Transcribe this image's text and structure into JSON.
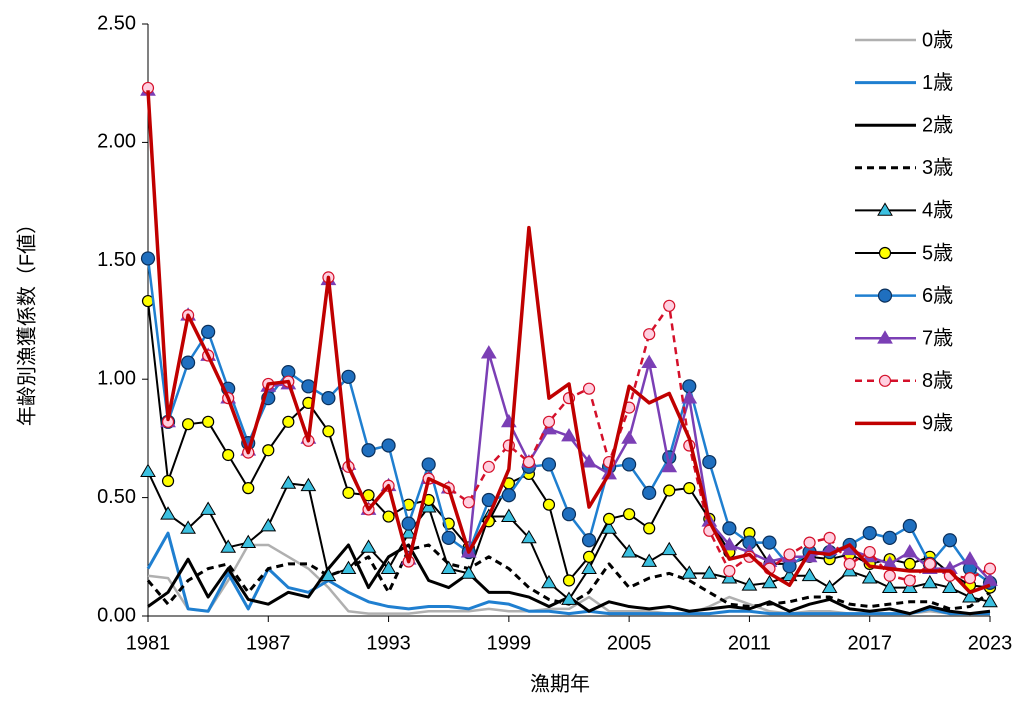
{
  "chart_data": {
    "type": "line",
    "xlabel": "漁期年",
    "ylabel": "年齢別漁獲係数（F値）",
    "x": [
      1981,
      1982,
      1983,
      1984,
      1985,
      1986,
      1987,
      1988,
      1989,
      1990,
      1991,
      1992,
      1993,
      1994,
      1995,
      1996,
      1997,
      1998,
      1999,
      2000,
      2001,
      2002,
      2003,
      2004,
      2005,
      2006,
      2007,
      2008,
      2009,
      2010,
      2011,
      2012,
      2013,
      2014,
      2015,
      2016,
      2017,
      2018,
      2019,
      2020,
      2021,
      2022,
      2023
    ],
    "xlim": [
      1981,
      2023
    ],
    "xticks": [
      1981,
      1987,
      1993,
      1999,
      2005,
      2011,
      2017,
      2023
    ],
    "ylim": [
      0,
      2.5
    ],
    "yticks": [
      {
        "value": 0,
        "label": "0.00"
      },
      {
        "value": 0.5,
        "label": "0.50"
      },
      {
        "value": 1,
        "label": "1.00"
      },
      {
        "value": 1.5,
        "label": "1.50"
      },
      {
        "value": 2,
        "label": "2.00"
      },
      {
        "value": 2.5,
        "label": "2.50"
      }
    ],
    "legend": "right",
    "series": [
      {
        "name": "0歳",
        "color": "#b0b0b0",
        "width": 2.5,
        "values": [
          0.17,
          0.16,
          0.03,
          0.02,
          0.15,
          0.3,
          0.3,
          0.25,
          0.2,
          0.12,
          0.02,
          0.01,
          0.01,
          0.01,
          0.02,
          0.02,
          0.02,
          0.03,
          0.02,
          0.02,
          0.03,
          0.03,
          0.08,
          0.02,
          0.02,
          0.02,
          0.01,
          0.01,
          0.04,
          0.08,
          0.05,
          0.02,
          0.01,
          0.02,
          0.02,
          0.01,
          0.01,
          0.01,
          0.01,
          0.02,
          0.01,
          0.01,
          0.01
        ]
      },
      {
        "name": "1歳",
        "color": "#1f7fd0",
        "width": 3,
        "values": [
          0.2,
          0.35,
          0.03,
          0.02,
          0.18,
          0.03,
          0.2,
          0.12,
          0.1,
          0.15,
          0.1,
          0.06,
          0.04,
          0.03,
          0.04,
          0.04,
          0.03,
          0.06,
          0.05,
          0.02,
          0.02,
          0.01,
          0.02,
          0.01,
          0.01,
          0.01,
          0.01,
          0.01,
          0.01,
          0.02,
          0.02,
          0.01,
          0.01,
          0.01,
          0.01,
          0.01,
          0.01,
          0.01,
          0.01,
          0.03,
          0.01,
          0.01,
          0.01
        ]
      },
      {
        "name": "2歳",
        "color": "#000000",
        "width": 3,
        "values": [
          0.04,
          0.1,
          0.24,
          0.08,
          0.2,
          0.07,
          0.05,
          0.1,
          0.08,
          0.2,
          0.3,
          0.12,
          0.25,
          0.3,
          0.15,
          0.12,
          0.18,
          0.1,
          0.1,
          0.08,
          0.04,
          0.08,
          0.02,
          0.06,
          0.04,
          0.03,
          0.04,
          0.02,
          0.03,
          0.04,
          0.03,
          0.06,
          0.02,
          0.05,
          0.07,
          0.03,
          0.02,
          0.03,
          0.01,
          0.04,
          0.02,
          0.01,
          0.02
        ]
      },
      {
        "name": "3歳",
        "color": "#000000",
        "width": 3,
        "dash": true,
        "values": [
          0.15,
          0.05,
          0.15,
          0.2,
          0.22,
          0.1,
          0.2,
          0.22,
          0.22,
          0.17,
          0.2,
          0.25,
          0.1,
          0.28,
          0.3,
          0.22,
          0.2,
          0.25,
          0.2,
          0.12,
          0.07,
          0.05,
          0.1,
          0.22,
          0.12,
          0.16,
          0.18,
          0.15,
          0.1,
          0.05,
          0.04,
          0.05,
          0.06,
          0.08,
          0.08,
          0.05,
          0.04,
          0.05,
          0.06,
          0.06,
          0.03,
          0.04,
          0.1
        ]
      },
      {
        "name": "4歳",
        "color": "#000000",
        "width": 2,
        "marker": "triangle",
        "marker_color": "#3cc0e0",
        "values": [
          0.61,
          0.43,
          0.37,
          0.45,
          0.29,
          0.31,
          0.38,
          0.56,
          0.55,
          0.17,
          0.2,
          0.29,
          0.2,
          0.35,
          0.46,
          0.2,
          0.18,
          0.42,
          0.42,
          0.33,
          0.14,
          0.07,
          0.2,
          0.37,
          0.27,
          0.23,
          0.28,
          0.18,
          0.18,
          0.16,
          0.13,
          0.14,
          0.17,
          0.17,
          0.12,
          0.19,
          0.16,
          0.12,
          0.12,
          0.14,
          0.12,
          0.08,
          0.06
        ]
      },
      {
        "name": "5歳",
        "color": "#000000",
        "width": 2,
        "marker": "circle",
        "marker_color": "#ffff00",
        "values": [
          1.33,
          0.57,
          0.81,
          0.82,
          0.68,
          0.54,
          0.7,
          0.82,
          0.9,
          0.78,
          0.52,
          0.51,
          0.42,
          0.47,
          0.49,
          0.39,
          0.29,
          0.4,
          0.56,
          0.6,
          0.47,
          0.15,
          0.25,
          0.41,
          0.43,
          0.37,
          0.53,
          0.54,
          0.41,
          0.27,
          0.35,
          0.22,
          0.22,
          0.25,
          0.24,
          0.26,
          0.22,
          0.24,
          0.22,
          0.25,
          0.18,
          0.13,
          0.12
        ]
      },
      {
        "name": "6歳",
        "color": "#1f7fd0",
        "width": 2.5,
        "marker": "circle",
        "marker_color": "#1f6fbf",
        "values": [
          1.51,
          0.82,
          1.07,
          1.2,
          0.96,
          0.73,
          0.92,
          1.03,
          0.97,
          0.92,
          1.01,
          0.7,
          0.72,
          0.39,
          0.64,
          0.33,
          0.27,
          0.49,
          0.51,
          0.63,
          0.64,
          0.43,
          0.32,
          0.63,
          0.64,
          0.52,
          0.67,
          0.97,
          0.65,
          0.37,
          0.31,
          0.31,
          0.21,
          0.27,
          0.27,
          0.3,
          0.35,
          0.33,
          0.38,
          0.22,
          0.32,
          0.2,
          0.14
        ]
      },
      {
        "name": "7歳",
        "color": "#7b3fb5",
        "width": 2.5,
        "marker": "triangle",
        "marker_color": "#7b3fb5",
        "values": [
          2.22,
          0.82,
          1.27,
          1.1,
          0.92,
          0.7,
          0.97,
          0.98,
          0.75,
          1.42,
          0.64,
          0.45,
          0.55,
          0.24,
          0.58,
          0.54,
          0.27,
          1.11,
          0.82,
          0.65,
          0.79,
          0.76,
          0.65,
          0.6,
          0.75,
          1.07,
          0.63,
          0.92,
          0.4,
          0.3,
          0.27,
          0.23,
          0.25,
          0.25,
          0.28,
          0.28,
          0.25,
          0.22,
          0.27,
          0.2,
          0.2,
          0.24,
          0.15
        ]
      },
      {
        "name": "8歳",
        "color": "#d4102a",
        "width": 2.5,
        "dash": true,
        "marker": "circle",
        "marker_color": "#ffd0e0",
        "values": [
          2.23,
          0.82,
          1.27,
          1.1,
          0.92,
          0.69,
          0.98,
          0.99,
          0.74,
          1.43,
          0.63,
          0.45,
          0.55,
          0.23,
          0.58,
          0.54,
          0.48,
          0.63,
          0.72,
          0.65,
          0.82,
          0.92,
          0.96,
          0.65,
          0.88,
          1.19,
          1.31,
          0.72,
          0.36,
          0.19,
          0.25,
          0.2,
          0.26,
          0.31,
          0.33,
          0.22,
          0.27,
          0.17,
          0.15,
          0.22,
          0.17,
          0.16,
          0.2
        ]
      },
      {
        "name": "9歳",
        "color": "#c00000",
        "width": 3.5,
        "values": [
          2.22,
          0.83,
          1.27,
          1.1,
          0.92,
          0.69,
          0.98,
          0.99,
          0.74,
          1.43,
          0.63,
          0.45,
          0.55,
          0.23,
          0.58,
          0.54,
          0.27,
          0.42,
          0.62,
          1.64,
          0.92,
          0.98,
          0.46,
          0.6,
          0.97,
          0.9,
          0.94,
          0.75,
          0.4,
          0.24,
          0.26,
          0.18,
          0.13,
          0.27,
          0.26,
          0.3,
          0.21,
          0.2,
          0.19,
          0.19,
          0.19,
          0.1,
          0.13
        ]
      }
    ]
  }
}
